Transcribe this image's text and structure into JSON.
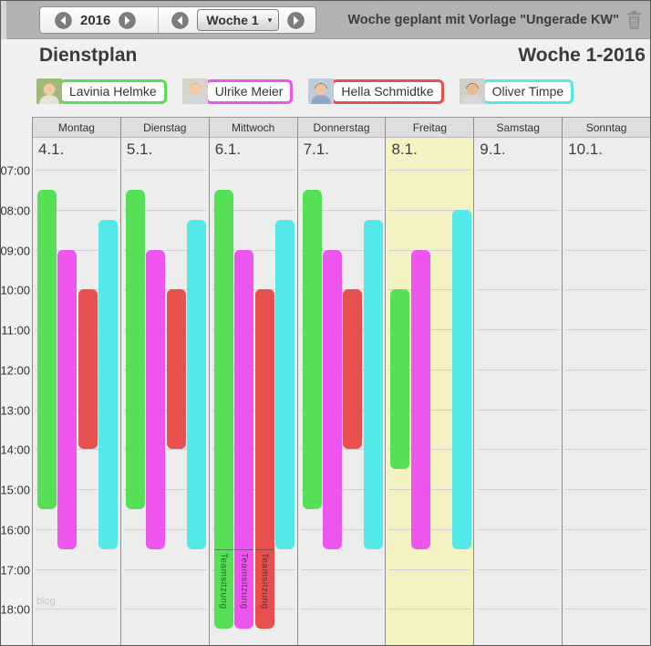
{
  "toolbar": {
    "year": "2016",
    "week_select": "Woche 1",
    "template_note": "Woche geplant mit Vorlage \"Ungerade KW\""
  },
  "icons": {
    "dropdown_arrow": "▾",
    "prev": "chevron-left-circle",
    "next": "chevron-right-circle",
    "delete": "trash-icon"
  },
  "header": {
    "title": "Dienstplan",
    "week_title": "Woche 1-2016"
  },
  "members": [
    {
      "id": "lavinia",
      "name": "Lavinia Helmke",
      "color": "#55e055",
      "avatar": {
        "bg": "#9db97c",
        "skin": "#f0c9a6",
        "hair": "#d8b45c",
        "shirt": "#e9e2d2"
      }
    },
    {
      "id": "ulrike",
      "name": "Ulrike Meier",
      "color": "#ee55ee",
      "avatar": {
        "bg": "#d8d4cc",
        "skin": "#f2cda9",
        "hair": "#cda35a",
        "shirt": "#cfd6de"
      }
    },
    {
      "id": "hella",
      "name": "Hella Schmidtke",
      "color": "#e85050",
      "avatar": {
        "bg": "#bcccdc",
        "skin": "#eec3a0",
        "hair": "#4a3526",
        "shirt": "#8fa8c8"
      }
    },
    {
      "id": "oliver",
      "name": "Oliver Timpe",
      "color": "#55e8e8",
      "avatar": {
        "bg": "#d2d0c6",
        "skin": "#e8bb95",
        "hair": "#2e241c",
        "shirt": "#d8d8d8"
      }
    }
  ],
  "times": [
    "07:00",
    "08:00",
    "09:00",
    "10:00",
    "11:00",
    "12:00",
    "13:00",
    "14:00",
    "15:00",
    "16:00",
    "17:00",
    "18:00"
  ],
  "watermark": "blog",
  "highlight_color": "#f4f1c3",
  "schedule": {
    "days": [
      {
        "name": "Montag",
        "date": "4.1.",
        "highlight": false,
        "shifts": [
          {
            "member": "lavinia",
            "slot": 0,
            "start": "07:30",
            "end": "15:30"
          },
          {
            "member": "ulrike",
            "slot": 1,
            "start": "09:00",
            "end": "16:30"
          },
          {
            "member": "hella",
            "slot": 2,
            "start": "10:00",
            "end": "14:00"
          },
          {
            "member": "oliver",
            "slot": 3,
            "start": "08:15",
            "end": "16:30"
          }
        ]
      },
      {
        "name": "Dienstag",
        "date": "5.1.",
        "highlight": false,
        "shifts": [
          {
            "member": "lavinia",
            "slot": 0,
            "start": "07:30",
            "end": "15:30"
          },
          {
            "member": "ulrike",
            "slot": 1,
            "start": "09:00",
            "end": "16:30"
          },
          {
            "member": "hella",
            "slot": 2,
            "start": "10:00",
            "end": "14:00"
          },
          {
            "member": "oliver",
            "slot": 3,
            "start": "08:15",
            "end": "16:30"
          }
        ]
      },
      {
        "name": "Mittwoch",
        "date": "6.1.",
        "highlight": false,
        "shifts": [
          {
            "member": "lavinia",
            "slot": 0,
            "start": "07:30",
            "end": "16:30",
            "meeting": {
              "label": "Teamsitzung",
              "start": "16:30",
              "end": "18:30"
            }
          },
          {
            "member": "ulrike",
            "slot": 1,
            "start": "09:00",
            "end": "16:30",
            "meeting": {
              "label": "Teamsitzung",
              "start": "16:30",
              "end": "18:30"
            }
          },
          {
            "member": "hella",
            "slot": 2,
            "start": "10:00",
            "end": "16:30",
            "meeting": {
              "label": "Teamsitzung",
              "start": "16:30",
              "end": "18:30"
            }
          },
          {
            "member": "oliver",
            "slot": 3,
            "start": "08:15",
            "end": "16:30"
          }
        ]
      },
      {
        "name": "Donnerstag",
        "date": "7.1.",
        "highlight": false,
        "shifts": [
          {
            "member": "lavinia",
            "slot": 0,
            "start": "07:30",
            "end": "15:30"
          },
          {
            "member": "ulrike",
            "slot": 1,
            "start": "09:00",
            "end": "16:30"
          },
          {
            "member": "hella",
            "slot": 2,
            "start": "10:00",
            "end": "14:00"
          },
          {
            "member": "oliver",
            "slot": 3,
            "start": "08:15",
            "end": "16:30"
          }
        ]
      },
      {
        "name": "Freitag",
        "date": "8.1.",
        "highlight": true,
        "shifts": [
          {
            "member": "lavinia",
            "slot": 0,
            "start": "10:00",
            "end": "14:30"
          },
          {
            "member": "ulrike",
            "slot": 1,
            "start": "09:00",
            "end": "16:30"
          },
          {
            "member": "oliver",
            "slot": 3,
            "start": "08:00",
            "end": "16:30"
          }
        ]
      },
      {
        "name": "Samstag",
        "date": "9.1.",
        "highlight": false,
        "shifts": []
      },
      {
        "name": "Sonntag",
        "date": "10.1.",
        "highlight": false,
        "shifts": []
      }
    ]
  }
}
